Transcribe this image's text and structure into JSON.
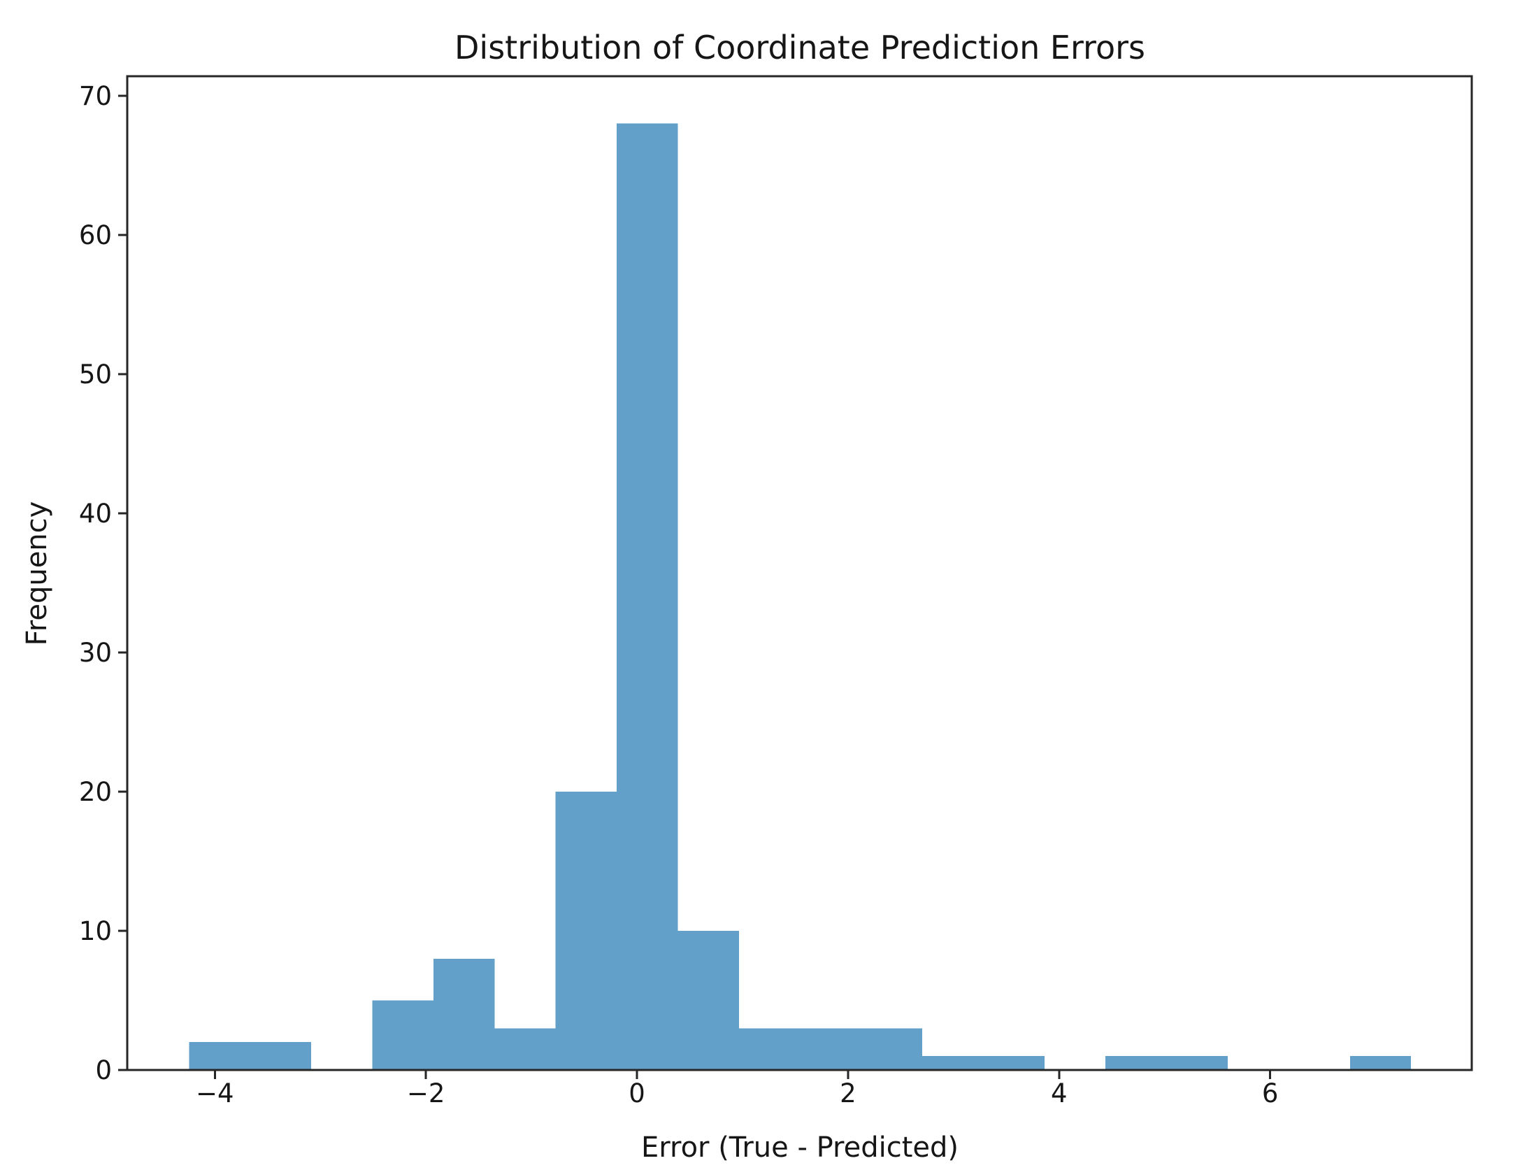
{
  "chart_data": {
    "type": "bar",
    "subtype": "histogram",
    "title": "Distribution of Coordinate Prediction Errors",
    "xlabel": "Error (True - Predicted)",
    "ylabel": "Frequency",
    "bin_edges": [
      -4.245,
      -3.666,
      -3.087,
      -2.508,
      -1.929,
      -1.35,
      -0.771,
      -0.192,
      0.387,
      0.966,
      1.545,
      2.124,
      2.703,
      3.282,
      3.861,
      4.44,
      5.019,
      5.598,
      6.177,
      6.756,
      7.335
    ],
    "counts": [
      2,
      2,
      0,
      5,
      8,
      3,
      20,
      68,
      10,
      3,
      3,
      3,
      1,
      1,
      0,
      1,
      1,
      0,
      0,
      1
    ],
    "x_ticks": [
      -4,
      -2,
      0,
      2,
      4,
      6
    ],
    "y_ticks": [
      0,
      10,
      20,
      30,
      40,
      50,
      60,
      70
    ],
    "xlim": [
      -4.83,
      7.91
    ],
    "ylim": [
      0,
      71.4
    ],
    "grid": false,
    "legend_position": "none",
    "colors": {
      "bar": "#62A0CA",
      "axis": "#262626",
      "text": "#161616",
      "background": "#ffffff"
    }
  }
}
